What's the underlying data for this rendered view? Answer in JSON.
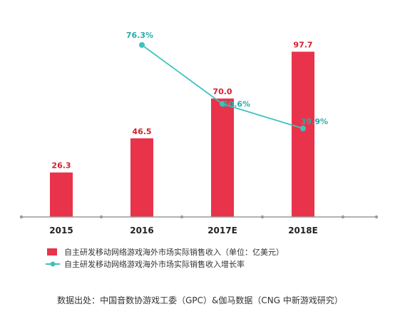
{
  "chart_data": {
    "type": "bar",
    "categories": [
      "2015",
      "2016",
      "2017E",
      "2018E"
    ],
    "series": [
      {
        "name": "自主研发移动网络游戏海外市场实际销售收入（单位：亿美元）",
        "type": "bar",
        "values": [
          26.3,
          46.5,
          70.0,
          97.7
        ],
        "value_labels": [
          "26.3",
          "46.5",
          "70.0",
          "97.7"
        ],
        "color": "#e8334a"
      },
      {
        "name": "自主研发移动网络游戏海外市场实际销售收入增长率",
        "type": "line",
        "values": [
          null,
          76.3,
          50.6,
          39.9
        ],
        "value_labels": [
          null,
          "76.3%",
          "50.6%",
          "39.9%"
        ],
        "color": "#3fc1c0"
      }
    ],
    "grid": false,
    "legend_position": "bottom-left"
  },
  "source_note": "数据出处：中国音数协游戏工委（GPC）&伽马数据（CNG 中新游戏研究）"
}
